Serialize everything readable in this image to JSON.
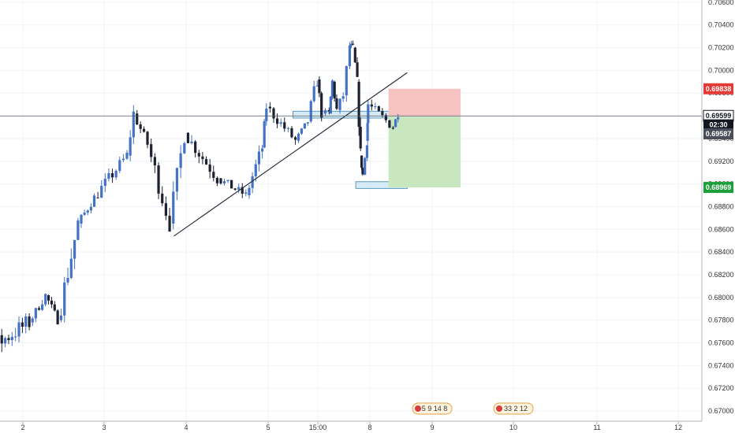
{
  "chart_data": {
    "type": "candlestick",
    "title": "",
    "xlabel": "",
    "ylabel": "",
    "ylim": [
      0.6691,
      0.7062
    ],
    "x_ticks": [
      "2",
      "3",
      "4",
      "5",
      "15:00",
      "8",
      "9",
      "10",
      "11",
      "12"
    ],
    "y_ticks": [
      "0.70600",
      "0.70400",
      "0.70200",
      "0.70000",
      "0.69800",
      "0.69600",
      "0.69400",
      "0.69200",
      "0.69000",
      "0.68800",
      "0.68600",
      "0.68400",
      "0.68200",
      "0.68000",
      "0.67800",
      "0.67600",
      "0.67400",
      "0.67200",
      "0.67000"
    ],
    "grid": true,
    "colors": {
      "up_candle": "#4472c4",
      "down_candle": "#1e2130",
      "trendline": "#2a2e39",
      "zone_fill": "#cfe8f3",
      "zone_border": "#5b9bbf",
      "stop_zone": "#f7c2c2",
      "target_zone": "#c8e6c0",
      "stop_tag": "#e53935",
      "target_tag": "#1e9e3a",
      "price_tag": "#131722"
    },
    "series": [
      {
        "name": "",
        "segments": [
          {
            "x_start": "1",
            "x_end": "2.1",
            "start": 0.6726,
            "end": 0.6778,
            "low": 0.6711,
            "high": 0.6786
          },
          {
            "x_start": "2.1",
            "x_end": "2.3",
            "start": 0.6778,
            "end": 0.6802,
            "low": 0.6772,
            "high": 0.6808
          },
          {
            "x_start": "2.3",
            "x_end": "2.45",
            "start": 0.6802,
            "end": 0.678,
            "low": 0.6772,
            "high": 0.6806
          },
          {
            "x_start": "2.45",
            "x_end": "2.7",
            "start": 0.678,
            "end": 0.6865,
            "low": 0.6778,
            "high": 0.687
          },
          {
            "x_start": "2.7",
            "x_end": "2.9",
            "start": 0.6865,
            "end": 0.6888,
            "low": 0.6858,
            "high": 0.6894
          },
          {
            "x_start": "2.9",
            "x_end": "3.3",
            "start": 0.6888,
            "end": 0.6925,
            "low": 0.688,
            "high": 0.693
          },
          {
            "x_start": "3.3",
            "x_end": "3.38",
            "start": 0.6925,
            "end": 0.6962,
            "low": 0.692,
            "high": 0.6979
          },
          {
            "x_start": "3.38",
            "x_end": "3.55",
            "start": 0.6962,
            "end": 0.6935,
            "low": 0.6925,
            "high": 0.6968
          },
          {
            "x_start": "3.55",
            "x_end": "3.82",
            "start": 0.6935,
            "end": 0.6865,
            "low": 0.6858,
            "high": 0.694
          },
          {
            "x_start": "3.82",
            "x_end": "4.0",
            "start": 0.6865,
            "end": 0.6945,
            "low": 0.686,
            "high": 0.695
          },
          {
            "x_start": "4.0",
            "x_end": "4.4",
            "start": 0.6945,
            "end": 0.6905,
            "low": 0.6898,
            "high": 0.6952
          },
          {
            "x_start": "4.4",
            "x_end": "4.75",
            "start": 0.6905,
            "end": 0.689,
            "low": 0.6878,
            "high": 0.6915
          },
          {
            "x_start": "4.75",
            "x_end": "4.95",
            "start": 0.689,
            "end": 0.6932,
            "low": 0.6882,
            "high": 0.694
          },
          {
            "x_start": "4.95",
            "x_end": "5.0",
            "start": 0.6932,
            "end": 0.6968,
            "low": 0.6925,
            "high": 0.6975
          },
          {
            "x_start": "5.0",
            "x_end": "5.35",
            "start": 0.6968,
            "end": 0.6938,
            "low": 0.6928,
            "high": 0.6972
          },
          {
            "x_start": "5.35",
            "x_end": "5.5",
            "start": 0.6938,
            "end": 0.6955,
            "low": 0.6932,
            "high": 0.696
          },
          {
            "x_start": "5.5",
            "x_end": "5.65",
            "start": 0.6955,
            "end": 0.6992,
            "low": 0.6948,
            "high": 0.7012
          },
          {
            "x_start": "5.65",
            "x_end": "5.85",
            "start": 0.6992,
            "end": 0.6962,
            "low": 0.6955,
            "high": 0.6998
          },
          {
            "x_start": "5.85",
            "x_end": "6.2",
            "start": 0.6962,
            "end": 0.6962,
            "low": 0.695,
            "high": 0.698
          },
          {
            "x_start": "6.2",
            "x_end": "6.35",
            "start": 0.6962,
            "end": 0.699,
            "low": 0.6955,
            "high": 0.6998
          },
          {
            "x_start": "6.35",
            "x_end": "6.55",
            "start": 0.699,
            "end": 0.6965,
            "low": 0.6958,
            "high": 0.6998
          },
          {
            "x_start": "6.55",
            "x_end": "6.85",
            "start": 0.6965,
            "end": 0.6978,
            "low": 0.6958,
            "high": 0.6998
          },
          {
            "x_start": "6.85",
            "x_end": "7.15",
            "start": 0.6978,
            "end": 0.7022,
            "low": 0.697,
            "high": 0.7025
          },
          {
            "x_start": "7.15",
            "x_end": "7.3",
            "start": 0.7022,
            "end": 0.702,
            "low": 0.7012,
            "high": 0.7042
          },
          {
            "x_start": "7.3",
            "x_end": "7.5",
            "start": 0.702,
            "end": 0.699,
            "low": 0.6982,
            "high": 0.7025
          },
          {
            "x_start": "7.5",
            "x_end": "7.65",
            "start": 0.699,
            "end": 0.6925,
            "low": 0.6918,
            "high": 0.6995
          },
          {
            "x_start": "7.65",
            "x_end": "7.75",
            "start": 0.6925,
            "end": 0.6908,
            "low": 0.6895,
            "high": 0.693
          },
          {
            "x_start": "7.75",
            "x_end": "7.95",
            "start": 0.6908,
            "end": 0.6938,
            "low": 0.6905,
            "high": 0.6945
          },
          {
            "x_start": "7.95",
            "x_end": "8.0",
            "start": 0.6938,
            "end": 0.697,
            "low": 0.693,
            "high": 0.6975
          },
          {
            "x_start": "8.0",
            "x_end": "8.4",
            "start": 0.697,
            "end": 0.695,
            "low": 0.6935,
            "high": 0.6975
          },
          {
            "x_start": "8.4",
            "x_end": "8.48",
            "start": 0.695,
            "end": 0.6962,
            "low": 0.6938,
            "high": 0.6968
          }
        ]
      }
    ],
    "annotations": [
      {
        "type": "trendline",
        "from": {
          "x": "3.85",
          "y": 0.6854
        },
        "to": {
          "x": "8.6",
          "y": 0.6998
        }
      },
      {
        "type": "horizontal_line",
        "y": 0.69599
      },
      {
        "type": "zone",
        "x_from": "5.3",
        "x_to": "8.6",
        "y_low": 0.6958,
        "y_high": 0.6964
      },
      {
        "type": "zone",
        "x_from": "7.35",
        "x_to": "8.6",
        "y_low": 0.6896,
        "y_high": 0.6902
      },
      {
        "type": "stop_zone",
        "x_from": "8.3",
        "x_to": "9.35",
        "y_low": 0.69599,
        "y_high": 0.69838
      },
      {
        "type": "target_zone",
        "x_from": "8.3",
        "x_to": "9.35",
        "y_low": 0.68969,
        "y_high": 0.69599
      }
    ],
    "price_tags": [
      {
        "label": "0.69838",
        "y": 0.69838,
        "kind": "stop"
      },
      {
        "label": "0.69599",
        "y": 0.69599,
        "kind": "current"
      },
      {
        "label": "02:30",
        "y": 0.6952,
        "kind": "countdown"
      },
      {
        "label": "0.69587",
        "y": 0.69441,
        "kind": "prev"
      },
      {
        "label": "0.68969",
        "y": 0.68969,
        "kind": "target"
      }
    ],
    "event_markers": [
      {
        "label": "5 9 14 8",
        "x": "9.0"
      },
      {
        "label": "33 2 12",
        "x": "10.0"
      }
    ]
  }
}
